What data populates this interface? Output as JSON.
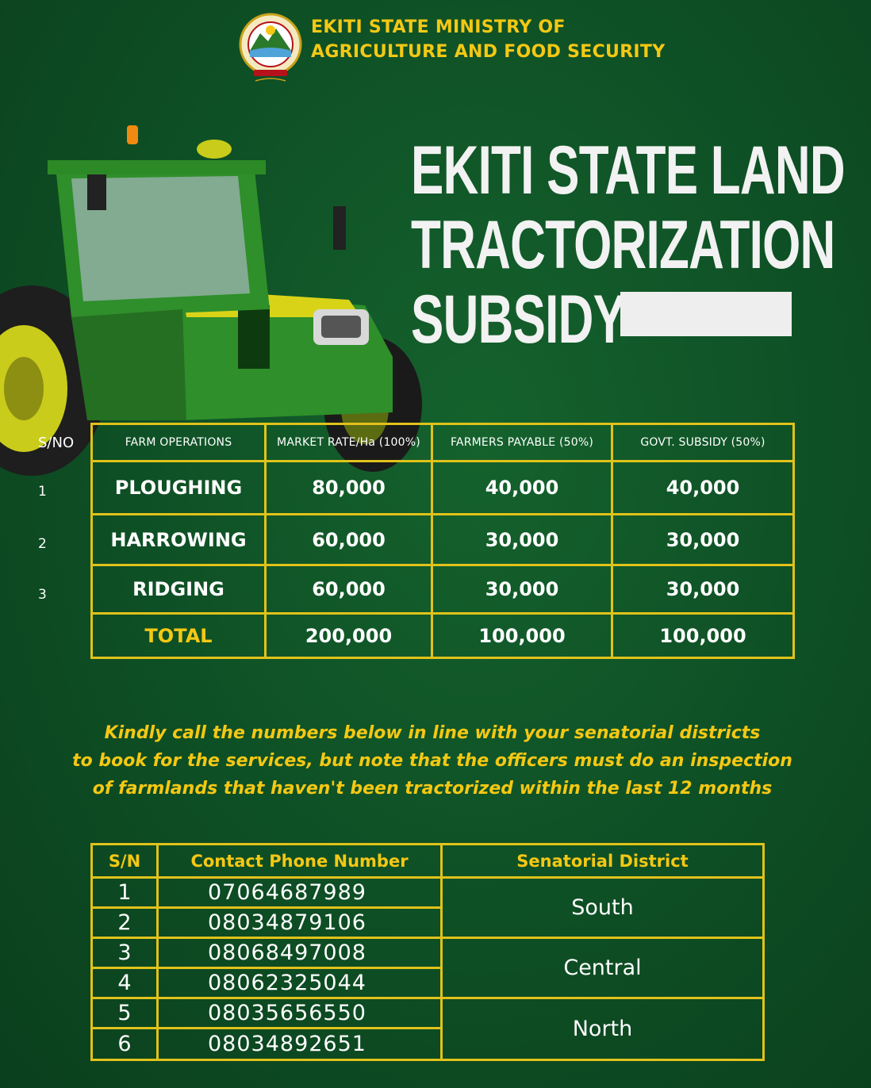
{
  "header": {
    "ministry_line1": "EKITI STATE MINISTRY OF",
    "ministry_line2": "AGRICULTURE AND FOOD SECURITY",
    "seal_icon": "ekiti-state-seal-icon"
  },
  "title": {
    "line1": "EKITI STATE LAND",
    "line2": "TRACTORIZATION",
    "line3": "SUBSIDY"
  },
  "subsidy_table": {
    "sno_label": "S/NO",
    "headers": [
      "FARM OPERATIONS",
      "MARKET RATE/Ha (100%)",
      "FARMERS PAYABLE (50%)",
      "GOVT. SUBSIDY (50%)"
    ],
    "rows": [
      {
        "sn": "1",
        "operation": "PLOUGHING",
        "market": "80,000",
        "farmers": "40,000",
        "govt": "40,000"
      },
      {
        "sn": "2",
        "operation": "HARROWING",
        "market": "60,000",
        "farmers": "30,000",
        "govt": "30,000"
      },
      {
        "sn": "3",
        "operation": "RIDGING",
        "market": "60,000",
        "farmers": "30,000",
        "govt": "30,000"
      }
    ],
    "total": {
      "label": "TOTAL",
      "market": "200,000",
      "farmers": "100,000",
      "govt": "100,000"
    }
  },
  "notice": {
    "line1": "Kindly call the numbers below in line with your senatorial districts",
    "line2": "to book for the services, but note that the officers must do an inspection",
    "line3": "of farmlands that haven't been tractorized within the last 12 months"
  },
  "contact_table": {
    "headers": [
      "S/N",
      "Contact Phone Number",
      "Senatorial District"
    ],
    "rows": [
      {
        "sn": "1",
        "phone": "07064687989"
      },
      {
        "sn": "2",
        "phone": "08034879106"
      },
      {
        "sn": "3",
        "phone": "08068497008"
      },
      {
        "sn": "4",
        "phone": "08062325044"
      },
      {
        "sn": "5",
        "phone": "08035656550"
      },
      {
        "sn": "6",
        "phone": "08034892651"
      }
    ],
    "districts": [
      "South",
      "Central",
      "North"
    ]
  },
  "colors": {
    "background": "#0f5226",
    "accent_yellow": "#f4c814",
    "border_yellow": "#e1c21b",
    "tractor_green": "#2f8f2a"
  }
}
